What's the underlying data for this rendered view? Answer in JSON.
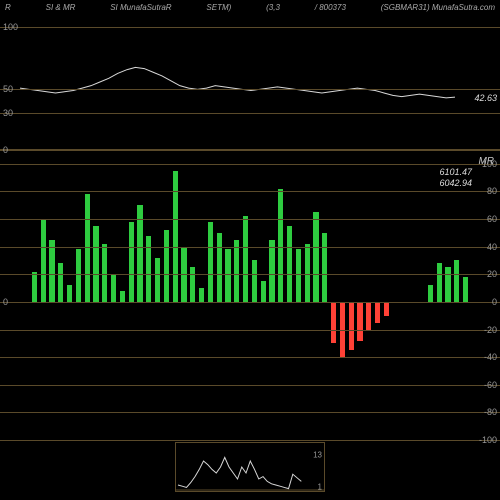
{
  "header": {
    "left1": "R",
    "left2": "SI & MR",
    "left3": "SI MunafaSutraR",
    "left4": "SETM)",
    "mid": "(3,3",
    "code": "/ 800373",
    "right": "(SGBMAR31) MunafaSutra.com"
  },
  "colors": {
    "background": "#000000",
    "hline": "#5a4a2a",
    "line_series": "#d8d8d8",
    "bar_up": "#2ecc40",
    "bar_down": "#ff4136",
    "text": "#cccccc"
  },
  "top_chart": {
    "ymin": 0,
    "ymax": 110,
    "yticks": [
      0,
      30,
      50,
      100
    ],
    "current_value": "42.63",
    "series": [
      50,
      49,
      48,
      47,
      46,
      47,
      48,
      50,
      52,
      55,
      58,
      62,
      65,
      67,
      66,
      63,
      60,
      56,
      52,
      50,
      49,
      50,
      52,
      51,
      50,
      49,
      48,
      49,
      50,
      51,
      50,
      49,
      48,
      47,
      46,
      47,
      48,
      49,
      50,
      49,
      48,
      46,
      44,
      43,
      44,
      45,
      44,
      43,
      42,
      42.63
    ]
  },
  "mid_chart": {
    "ymin": -100,
    "ymax": 110,
    "yticks_left": [
      0
    ],
    "yticks_right": [
      -100,
      -80,
      -60,
      -40,
      -20,
      0,
      20,
      40,
      60,
      80,
      100
    ],
    "label": "MR",
    "overlay_values": [
      "6101.47",
      "6042.94"
    ],
    "bars": [
      22,
      60,
      45,
      28,
      12,
      38,
      78,
      55,
      42,
      20,
      8,
      58,
      70,
      48,
      32,
      52,
      95,
      40,
      25,
      10,
      58,
      50,
      38,
      45,
      62,
      30,
      15,
      45,
      82,
      55,
      38,
      42,
      65,
      50,
      -30,
      -40,
      -35,
      -28,
      -20,
      -15,
      -10,
      0,
      0,
      0,
      0,
      12,
      28,
      25,
      30,
      18
    ]
  },
  "mini_chart": {
    "ymin": 0,
    "ymax": 40,
    "ticks": {
      "top": "13",
      "bottom": "1"
    },
    "series": [
      5,
      4,
      3,
      7,
      12,
      18,
      25,
      22,
      18,
      15,
      20,
      28,
      20,
      15,
      10,
      20,
      15,
      25,
      18,
      10,
      12,
      8,
      6,
      5,
      4,
      3,
      2,
      14,
      11,
      8
    ]
  }
}
